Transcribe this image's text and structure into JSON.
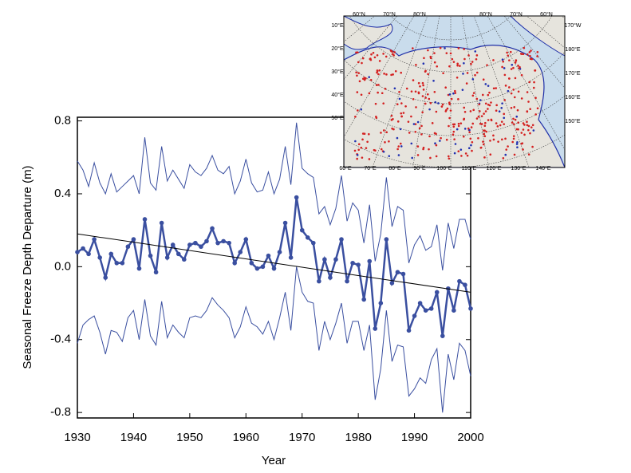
{
  "chart_data": {
    "type": "line",
    "xlabel": "Year",
    "ylabel": "Seasonal Freeze Depth Departure (m)",
    "x": [
      1930,
      1931,
      1932,
      1933,
      1934,
      1935,
      1936,
      1937,
      1938,
      1939,
      1940,
      1941,
      1942,
      1943,
      1944,
      1945,
      1946,
      1947,
      1948,
      1949,
      1950,
      1951,
      1952,
      1953,
      1954,
      1955,
      1956,
      1957,
      1958,
      1959,
      1960,
      1961,
      1962,
      1963,
      1964,
      1965,
      1966,
      1967,
      1968,
      1969,
      1970,
      1971,
      1972,
      1973,
      1974,
      1975,
      1976,
      1977,
      1978,
      1979,
      1980,
      1981,
      1982,
      1983,
      1984,
      1985,
      1986,
      1987,
      1988,
      1989,
      1990,
      1991,
      1992,
      1993,
      1994,
      1995,
      1996,
      1997,
      1998,
      1999,
      2000
    ],
    "series": [
      {
        "color": "#3a4fa0",
        "values": [
          0.58,
          0.53,
          0.44,
          0.57,
          0.46,
          0.4,
          0.51,
          0.41,
          0.44,
          0.47,
          0.5,
          0.4,
          0.71,
          0.46,
          0.42,
          0.66,
          0.47,
          0.53,
          0.48,
          0.43,
          0.56,
          0.52,
          0.5,
          0.54,
          0.61,
          0.53,
          0.51,
          0.55,
          0.4,
          0.47,
          0.59,
          0.46,
          0.41,
          0.42,
          0.52,
          0.4,
          0.48,
          0.66,
          0.45,
          0.79,
          0.54,
          0.51,
          0.49,
          0.29,
          0.33,
          0.23,
          0.32,
          0.5,
          0.25,
          0.35,
          0.31,
          0.13,
          0.34,
          0.03,
          0.18,
          0.49,
          0.22,
          0.33,
          0.31,
          0.02,
          0.12,
          0.17,
          0.09,
          0.11,
          0.23,
          -0.02,
          0.24,
          0.1,
          0.26,
          0.26,
          0.15
        ]
      },
      {
        "color": "#3a4fa0",
        "markers": true,
        "values": [
          0.08,
          0.1,
          0.07,
          0.15,
          0.05,
          -0.06,
          0.07,
          0.02,
          0.02,
          0.11,
          0.15,
          -0.01,
          0.26,
          0.06,
          -0.03,
          0.24,
          0.05,
          0.12,
          0.07,
          0.04,
          0.12,
          0.13,
          0.11,
          0.14,
          0.21,
          0.13,
          0.14,
          0.13,
          0.02,
          0.08,
          0.15,
          0.02,
          -0.01,
          0.0,
          0.06,
          -0.01,
          0.08,
          0.24,
          0.05,
          0.38,
          0.2,
          0.16,
          0.13,
          -0.08,
          0.04,
          -0.06,
          0.04,
          0.15,
          -0.08,
          0.02,
          0.01,
          -0.18,
          0.03,
          -0.34,
          -0.2,
          0.15,
          -0.09,
          -0.03,
          -0.04,
          -0.35,
          -0.27,
          -0.2,
          -0.24,
          -0.23,
          -0.14,
          -0.38,
          -0.12,
          -0.24,
          -0.08,
          -0.1,
          -0.23
        ]
      },
      {
        "color": "#3a4fa0",
        "values": [
          -0.42,
          -0.32,
          -0.29,
          -0.27,
          -0.36,
          -0.48,
          -0.35,
          -0.36,
          -0.41,
          -0.28,
          -0.24,
          -0.4,
          -0.18,
          -0.38,
          -0.43,
          -0.19,
          -0.39,
          -0.32,
          -0.36,
          -0.39,
          -0.28,
          -0.27,
          -0.28,
          -0.24,
          -0.17,
          -0.21,
          -0.24,
          -0.28,
          -0.39,
          -0.33,
          -0.22,
          -0.31,
          -0.33,
          -0.37,
          -0.3,
          -0.4,
          -0.28,
          -0.14,
          -0.35,
          0.0,
          -0.14,
          -0.19,
          -0.2,
          -0.46,
          -0.3,
          -0.4,
          -0.31,
          -0.2,
          -0.42,
          -0.3,
          -0.3,
          -0.46,
          -0.32,
          -0.73,
          -0.56,
          -0.24,
          -0.52,
          -0.43,
          -0.44,
          -0.71,
          -0.67,
          -0.61,
          -0.64,
          -0.51,
          -0.45,
          -0.8,
          -0.48,
          -0.62,
          -0.42,
          -0.46,
          -0.6
        ]
      }
    ],
    "trend": {
      "color": "#000000",
      "x": [
        1930,
        2000
      ],
      "values": [
        0.18,
        -0.14
      ]
    },
    "xlim": [
      1930,
      2000
    ],
    "xticks": [
      1930,
      1940,
      1950,
      1960,
      1970,
      1980,
      1990,
      2000
    ],
    "ylim": [
      -0.83,
      0.82
    ],
    "yticks": [
      -0.8,
      -0.4,
      {
        "value": 0,
        "label": "0.0"
      },
      0.4,
      0.8
    ],
    "map_labels": {
      "top": [
        "60°N",
        "70°N",
        "80°N",
        "80°N",
        "70°N",
        "60°N"
      ],
      "left": [
        "10°E",
        "20°E",
        "30°E",
        "40°E",
        "50°E"
      ],
      "bottom": [
        "60°E",
        "70°E",
        "80°E",
        "90°E",
        "100°E",
        "110°E",
        "120°E",
        "130°E",
        "140°E"
      ],
      "right": [
        "170°W",
        "180°E",
        "170°E",
        "160°E",
        "150°E"
      ]
    }
  }
}
